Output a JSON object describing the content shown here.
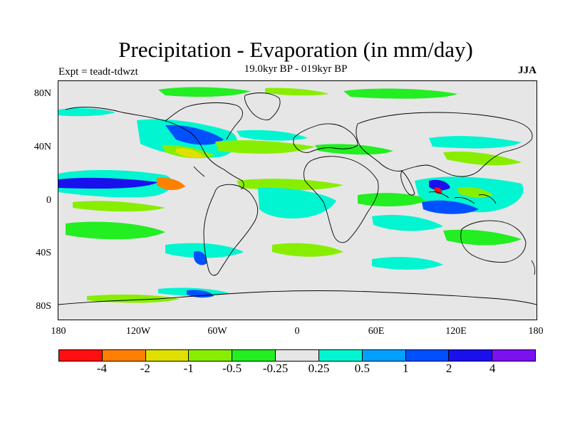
{
  "title": "Precipitation - Evaporation (in mm/day)",
  "subtitle": "19.0kyr BP - 019kyr BP",
  "left_label": "Expt = teadt-tdwzt",
  "right_label": "JJA",
  "lat_labels": [
    "80N",
    "40N",
    "0",
    "40S",
    "80S"
  ],
  "lon_labels": [
    "180",
    "120W",
    "60W",
    "0",
    "60E",
    "120E",
    "180"
  ],
  "colorbar": {
    "colors": [
      "#ff1010",
      "#ff8000",
      "#e0e000",
      "#88ee00",
      "#22ee22",
      "#e6e6e6",
      "#00f5d0",
      "#00a0ff",
      "#0050ff",
      "#1a10ee",
      "#7b10f0"
    ],
    "labels": [
      "-4",
      "-2",
      "-1",
      "-0.5",
      "-0.25",
      "0.25",
      "0.5",
      "1",
      "2",
      "4"
    ]
  },
  "palette": {
    "background": "#e6e6e6",
    "coast": "#000000"
  }
}
